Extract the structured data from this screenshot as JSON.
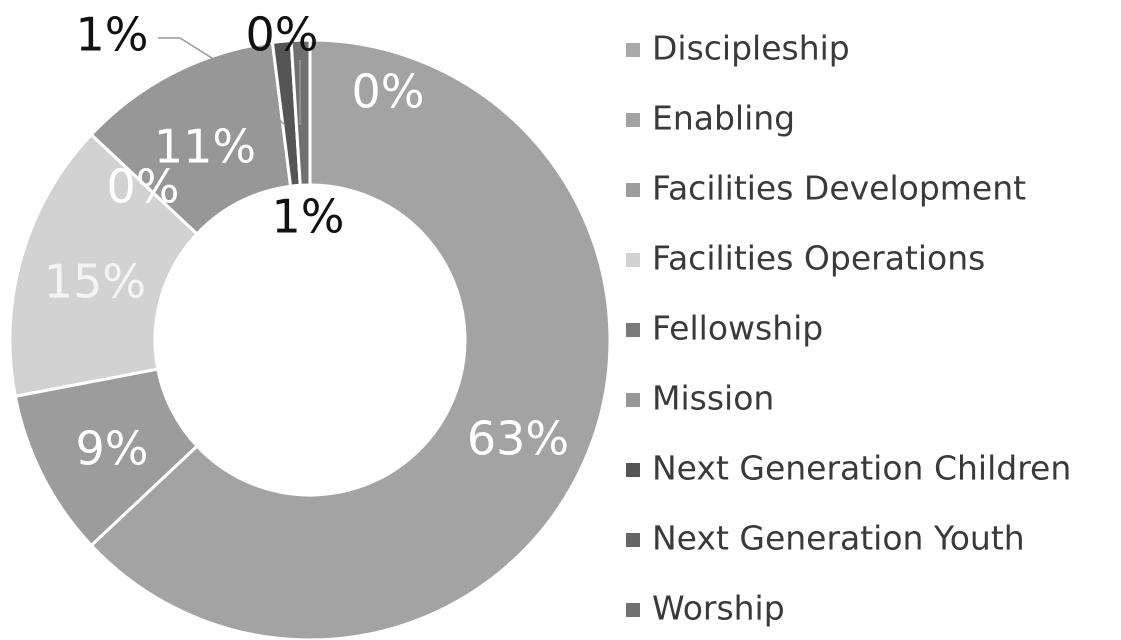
{
  "chart_data": {
    "type": "donut",
    "categories": [
      "Discipleship",
      "Enabling",
      "Facilities Development",
      "Facilities Operations",
      "Fellowship",
      "Mission",
      "Next Generation Children",
      "Next Generation Youth",
      "Worship"
    ],
    "values": [
      0,
      63,
      9,
      15,
      0,
      11,
      1,
      0,
      1
    ],
    "value_labels": [
      "0%",
      "63%",
      "9%",
      "15%",
      "0%",
      "11%",
      "1%",
      "0%",
      "1%"
    ],
    "colors": [
      "#a8a8a8",
      "#a3a3a3",
      "#9c9c9c",
      "#d2d2d2",
      "#7a7a7a",
      "#979797",
      "#555555",
      "#666666",
      "#707070"
    ],
    "legend": "right"
  }
}
